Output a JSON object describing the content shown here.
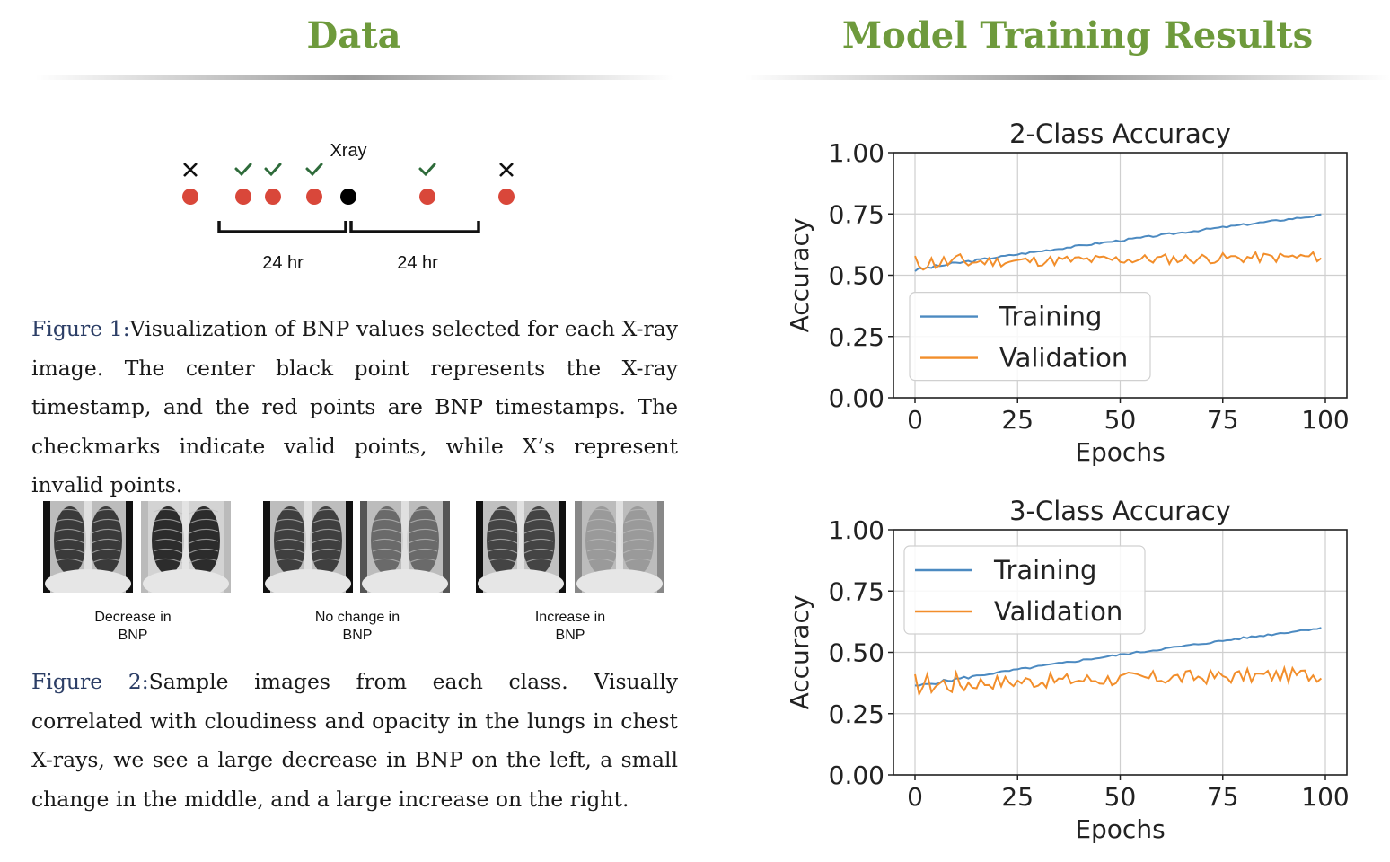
{
  "sections": {
    "data_title": "Data",
    "results_title": "Model Training Results"
  },
  "timeline": {
    "xray_label": "Xray",
    "span_left": "24 hr",
    "span_right": "24 hr",
    "points": [
      {
        "mark": "x",
        "kind": "bnp"
      },
      {
        "mark": "check",
        "kind": "bnp"
      },
      {
        "mark": "check",
        "kind": "bnp"
      },
      {
        "mark": "check",
        "kind": "bnp"
      },
      {
        "mark": "",
        "kind": "xray"
      },
      {
        "mark": "check",
        "kind": "bnp"
      },
      {
        "mark": "x",
        "kind": "bnp"
      }
    ],
    "colors": {
      "bnp": "#d9473a",
      "xray": "#000000",
      "check": "#2e6b3a",
      "x": "#111111"
    }
  },
  "figure1": {
    "ref": "Figure 1:",
    "text": "Visualization of BNP values selected for each X-ray image. The center black point represents the X-ray timestamp, and the red points are BNP timestamps.  The checkmarks indicate valid points, while X’s represent invalid points."
  },
  "xray_groups": [
    {
      "line1": "Decrease in",
      "line2": "BNP"
    },
    {
      "line1": "No change in",
      "line2": "BNP"
    },
    {
      "line1": "Increase in",
      "line2": "BNP"
    }
  ],
  "figure2": {
    "ref": "Figure 2:",
    "text": "Sample images from each class.  Visually correlated with cloudiness and opacity in the lungs in chest X-rays, we see a large decrease in BNP on the left, a small change in the middle, and a large increase on the right."
  },
  "chart_data": [
    {
      "type": "line",
      "title": "2-Class Accuracy",
      "xlabel": "Epochs",
      "ylabel": "Accuracy",
      "xlim": [
        0,
        100
      ],
      "ylim": [
        0,
        1
      ],
      "xticks": [
        "0",
        "25",
        "50",
        "75",
        "100"
      ],
      "yticks": [
        "0.00",
        "0.25",
        "0.50",
        "0.75",
        "1.00"
      ],
      "grid": true,
      "legend": "center-left",
      "series": [
        {
          "name": "Training",
          "color": "#4c8ac1",
          "start": 0.52,
          "end": 0.745,
          "noise": 0.004,
          "seed": 3
        },
        {
          "name": "Validation",
          "color": "#f28e2b",
          "start": 0.55,
          "end": 0.575,
          "noise": 0.022,
          "seed": 11
        }
      ]
    },
    {
      "type": "line",
      "title": "3-Class Accuracy",
      "xlabel": "Epochs",
      "ylabel": "Accuracy",
      "xlim": [
        0,
        100
      ],
      "ylim": [
        0,
        1
      ],
      "xticks": [
        "0",
        "25",
        "50",
        "75",
        "100"
      ],
      "yticks": [
        "0.00",
        "0.25",
        "0.50",
        "0.75",
        "1.00"
      ],
      "grid": true,
      "legend": "upper-left",
      "series": [
        {
          "name": "Training",
          "color": "#4c8ac1",
          "start": 0.36,
          "end": 0.6,
          "noise": 0.004,
          "seed": 5
        },
        {
          "name": "Validation",
          "color": "#f28e2b",
          "start": 0.37,
          "end": 0.41,
          "noise": 0.03,
          "seed": 17
        }
      ]
    }
  ]
}
